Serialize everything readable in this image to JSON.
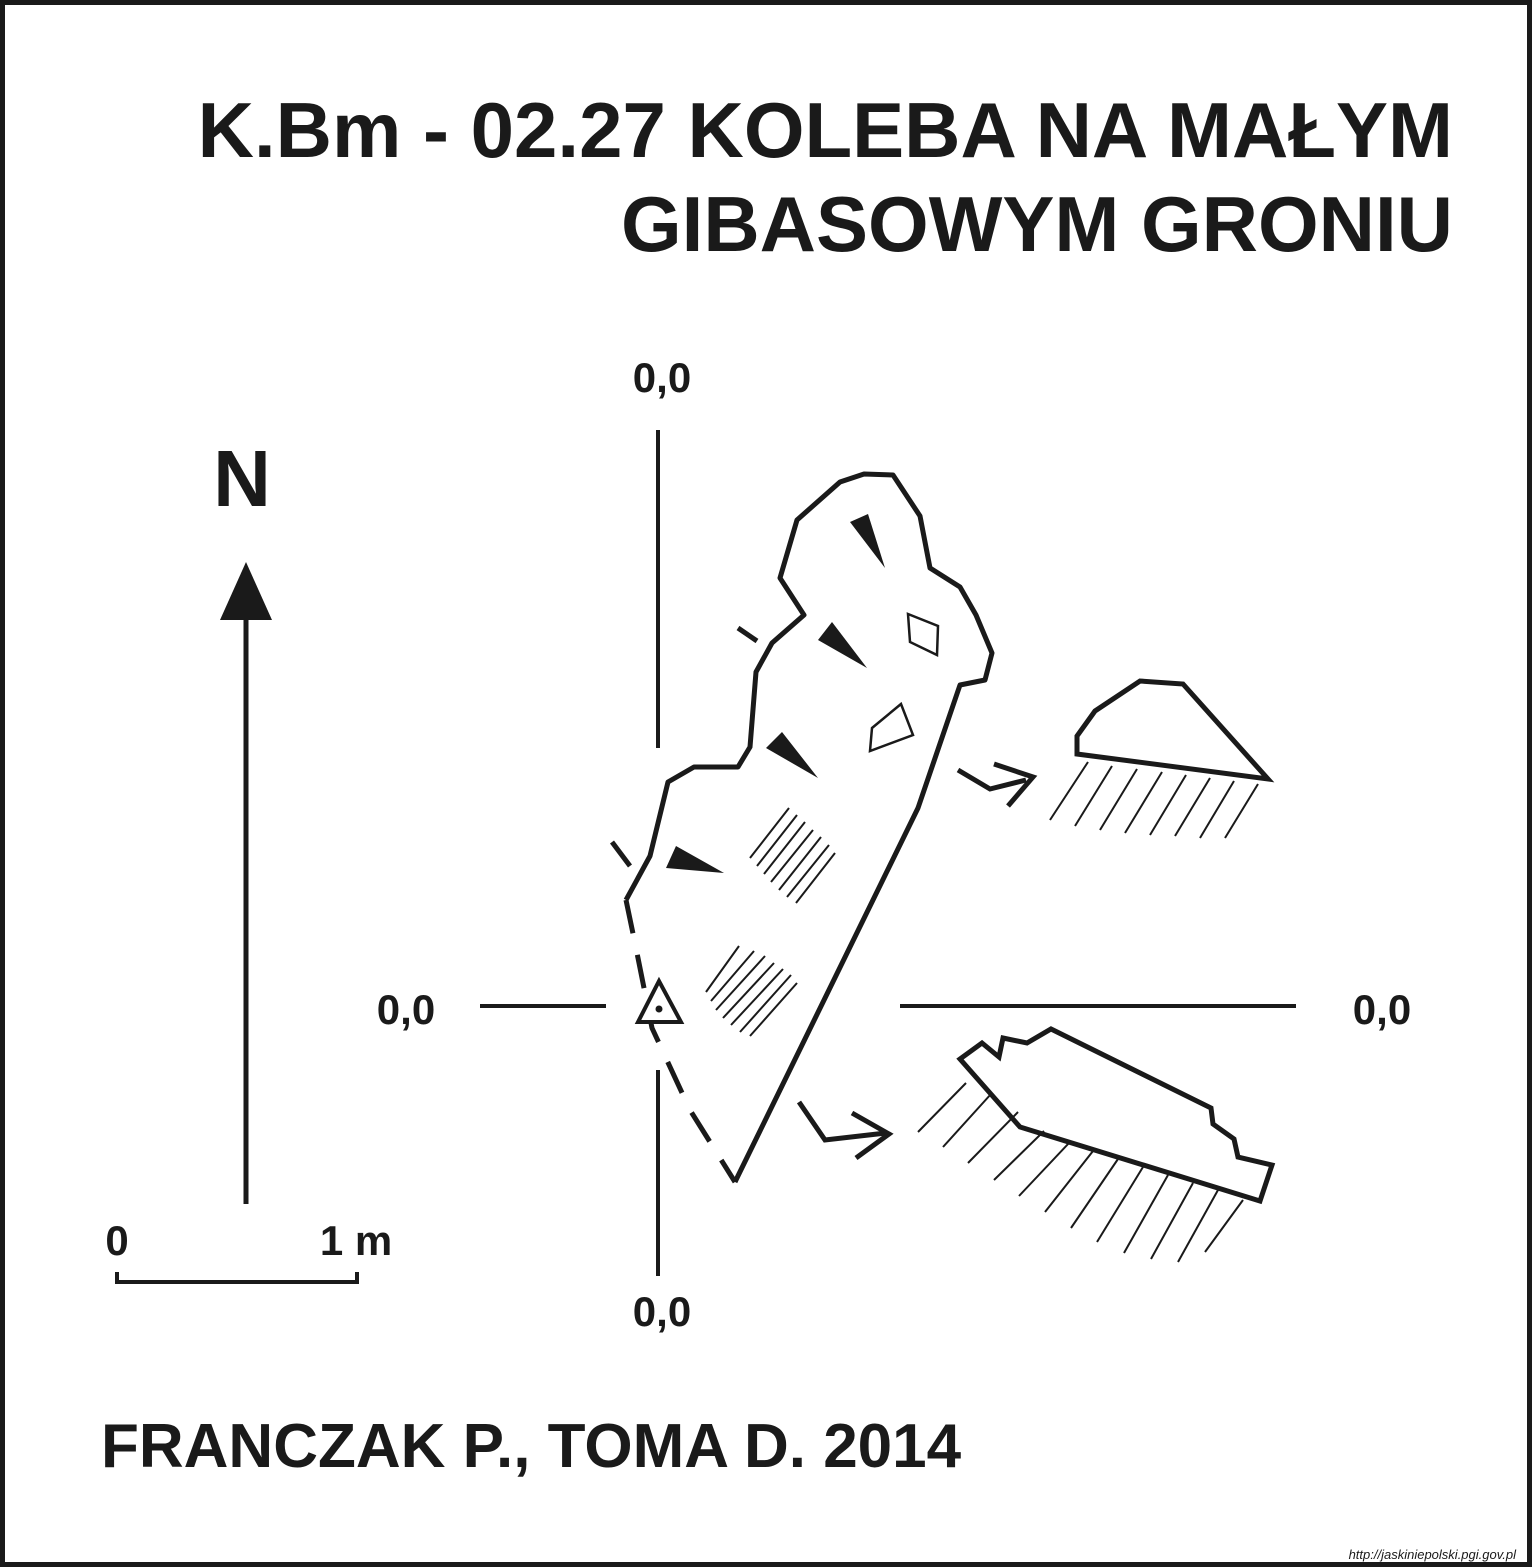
{
  "title": {
    "line1": "K.Bm - 02.27  KOLEBA NA MAŁYM",
    "line2": "GIBASOWYM GRONIU"
  },
  "north_label": "N",
  "scale_bar": {
    "start_label": "0",
    "end_label": "1 m"
  },
  "datum_labels": {
    "top": "0,0",
    "left": "0,0",
    "right": "0,0",
    "bottom": "0,0"
  },
  "authors": "FRANCZAK P., TOMA D. 2014",
  "source_url": "http://jaskiniepolski.pgi.gov.pl",
  "colors": {
    "ink": "#1a1a1a",
    "paper": "#ffffff"
  }
}
